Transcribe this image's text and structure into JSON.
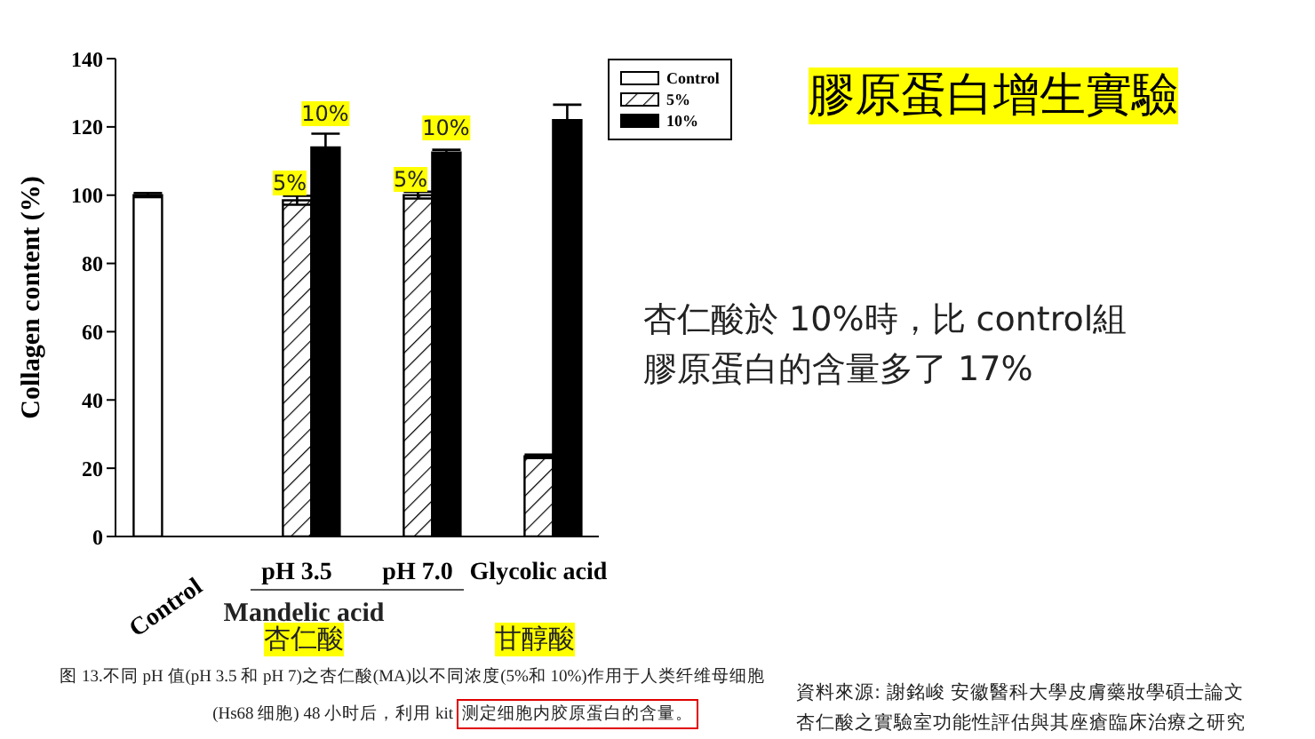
{
  "chart_data": {
    "type": "bar",
    "title": "膠原蛋白增生實驗",
    "ylabel": "Collagen content (%)",
    "categories": [
      "Control",
      "pH 3.5",
      "pH 7.0",
      "Glycolic acid"
    ],
    "series": [
      {
        "name": "Control",
        "color": "#ffffff",
        "values": [
          100,
          null,
          null,
          null
        ],
        "errors": [
          0.6,
          null,
          null,
          null
        ]
      },
      {
        "name": "5%",
        "color": "#000000",
        "values": [
          null,
          98.5,
          100,
          23.5
        ],
        "errors": [
          null,
          1.3,
          1,
          0.5
        ]
      },
      {
        "name": "10%",
        "color": "#000000",
        "values": [
          null,
          114,
          112.5,
          122
        ],
        "errors": [
          null,
          4,
          0.8,
          4.5
        ]
      }
    ],
    "ylim": [
      0,
      140
    ],
    "yticks": [
      0,
      20,
      40,
      60,
      80,
      100,
      120,
      140
    ],
    "legend": "top right",
    "annotations": [
      "5%",
      "10%",
      "5%",
      "10%",
      "Mandelic acid",
      "杏仁酸",
      "甘醇酸",
      "杏仁酸於 10%時，比 control組",
      "膠原蛋白的含量多了 17%",
      "图 13.不同 pH 值(pH 3.5 和 pH 7)之杏仁酸(MA)以不同浓度(5%和 10%)作用于人类纤维母细胞",
      "(Hs68 细胞) 48 小时后，利用 kit",
      "测定细胞内胶原蛋白的含量。",
      "資料來源: 謝銘峻  安徽醫科大學皮膚藥妝學碩士論文",
      "杏仁酸之實驗室功能性評估與其座瘡臨床治療之研究"
    ]
  }
}
